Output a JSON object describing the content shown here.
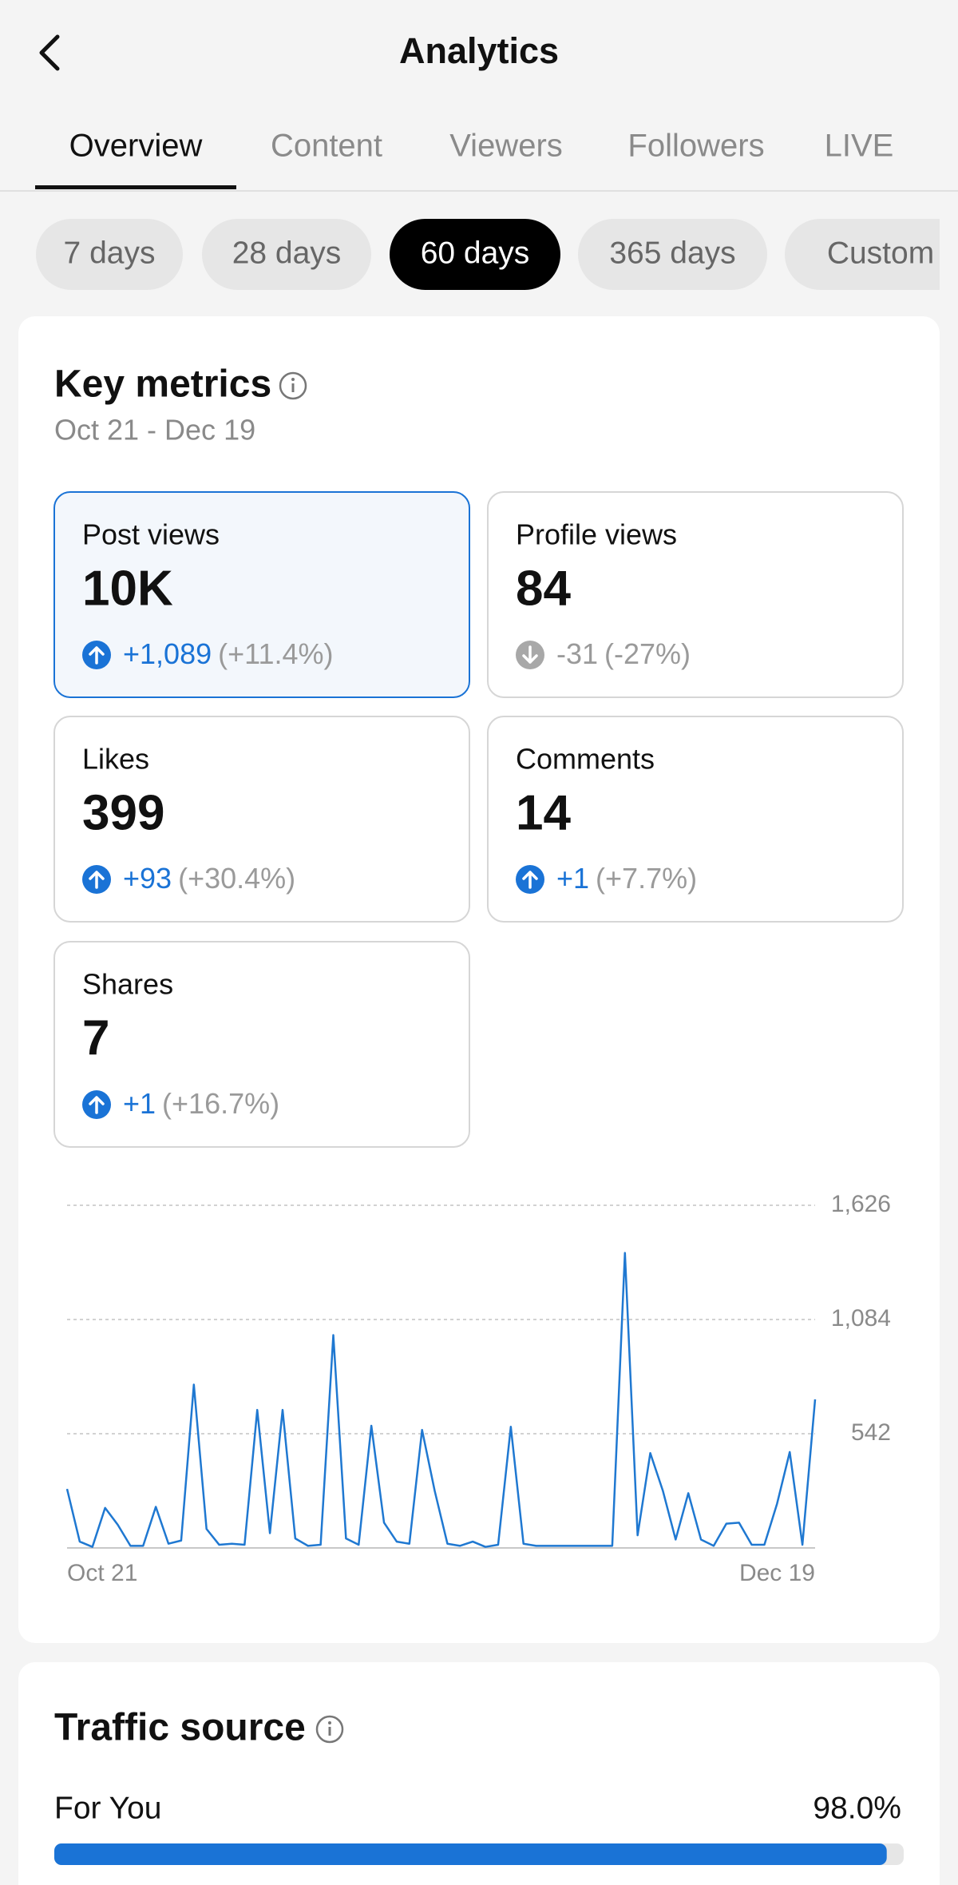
{
  "header": {
    "title": "Analytics"
  },
  "tabs": [
    "Overview",
    "Content",
    "Viewers",
    "Followers",
    "LIVE"
  ],
  "active_tab": 0,
  "ranges": [
    "7 days",
    "28 days",
    "60 days",
    "365 days",
    "Custom"
  ],
  "active_range": 2,
  "key_metrics": {
    "title": "Key metrics",
    "date_range": "Oct 21 - Dec 19",
    "selected": 0,
    "cards": [
      {
        "label": "Post views",
        "value": "10K",
        "change": "+1,089",
        "percent": "(+11.4%)",
        "direction": "up"
      },
      {
        "label": "Profile views",
        "value": "84",
        "change": "-31",
        "percent": "(-27%)",
        "direction": "down"
      },
      {
        "label": "Likes",
        "value": "399",
        "change": "+93",
        "percent": "(+30.4%)",
        "direction": "up"
      },
      {
        "label": "Comments",
        "value": "14",
        "change": "+1",
        "percent": "(+7.7%)",
        "direction": "up"
      },
      {
        "label": "Shares",
        "value": "7",
        "change": "+1",
        "percent": "(+16.7%)",
        "direction": "up"
      }
    ]
  },
  "chart_data": {
    "type": "line",
    "categories": [
      "Oct 21",
      null,
      null,
      null,
      null,
      null,
      null,
      null,
      null,
      null,
      null,
      null,
      null,
      null,
      null,
      null,
      null,
      null,
      null,
      null,
      null,
      null,
      null,
      null,
      null,
      null,
      null,
      null,
      null,
      null,
      null,
      null,
      null,
      null,
      null,
      null,
      null,
      null,
      null,
      null,
      null,
      null,
      null,
      null,
      null,
      null,
      null,
      null,
      null,
      null,
      null,
      null,
      null,
      null,
      null,
      null,
      null,
      null,
      null,
      "Dec 19"
    ],
    "values": [
      280,
      30,
      5,
      190,
      110,
      10,
      10,
      195,
      20,
      35,
      775,
      90,
      15,
      20,
      15,
      655,
      70,
      655,
      45,
      10,
      15,
      1010,
      45,
      15,
      580,
      120,
      30,
      20,
      560,
      270,
      20,
      10,
      30,
      5,
      15,
      575,
      20,
      10,
      10,
      10,
      10,
      10,
      10,
      10,
      1400,
      60,
      450,
      270,
      40,
      260,
      40,
      10,
      115,
      120,
      15,
      15,
      210,
      455,
      15,
      705
    ],
    "color": "#1f78d1",
    "ylim": [
      0,
      1626
    ],
    "yticks": [
      542,
      {
        "value": 1084,
        "label": "1,084"
      },
      {
        "value": 1626,
        "label": "1,626"
      }
    ],
    "grid": true
  },
  "traffic_source": {
    "title": "Traffic source",
    "items": [
      {
        "label": "For You",
        "value": 98.0,
        "value_label": "98.0%"
      }
    ]
  }
}
